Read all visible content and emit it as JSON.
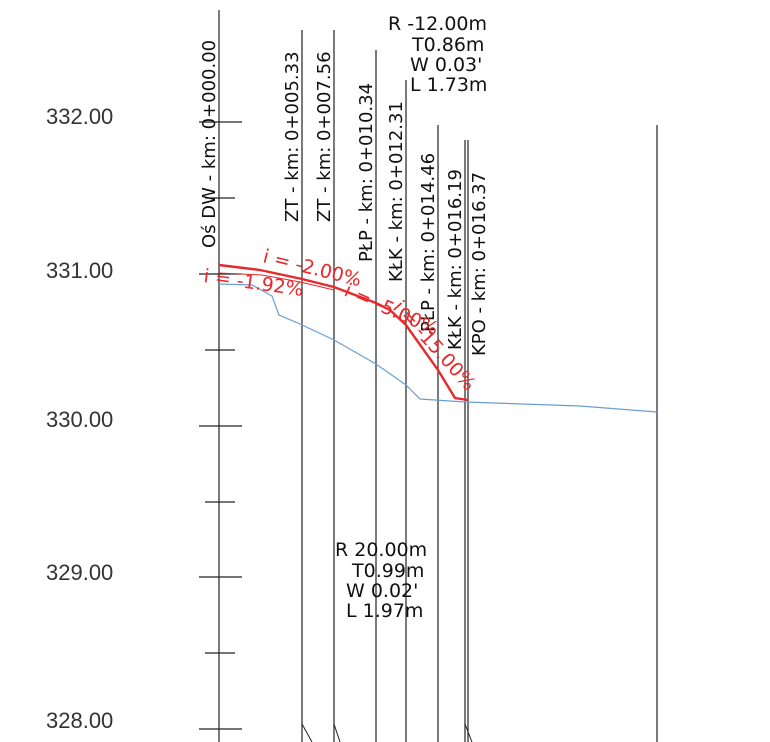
{
  "elevation_labels": [
    "332.00",
    "331.00",
    "330.00",
    "329.00",
    "328.00"
  ],
  "stations": [
    {
      "label": "Oś DW - km: 0+000.00"
    },
    {
      "label": "ZT - km: 0+005.33"
    },
    {
      "label": "ZT - km: 0+007.56"
    },
    {
      "label": "PŁP - km: 0+010.34"
    },
    {
      "label": "KŁK - km: 0+012.31"
    },
    {
      "label": "PŁP - km: 0+014.46"
    },
    {
      "label": "KŁK - km: 0+016.19"
    },
    {
      "label": "KPO - km: 0+016.37"
    }
  ],
  "curve_top": {
    "R": "R  -12.00m",
    "T": "T0.86m",
    "W": "W  0.03'",
    "L": "L  1.73m"
  },
  "curve_bottom": {
    "R": "R  20.00m",
    "T": "T0.99m",
    "W": "W  0.02'",
    "L": "L  1.97m"
  },
  "slopes": [
    "i = -1.92%",
    "i = -2.00%",
    "i = -5.00%",
    "i = -15.00%"
  ],
  "colors": {
    "design": "#e8282b",
    "terrain": "#6a9ed0",
    "lines": "#222222"
  }
}
